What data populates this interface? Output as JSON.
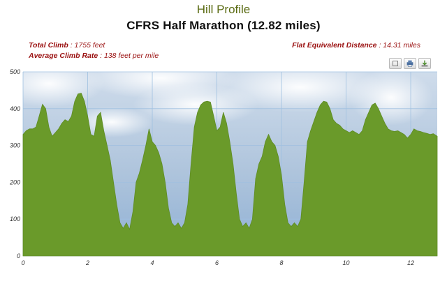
{
  "header": {
    "page_title": "Hill Profile",
    "chart_title": "CFRS Half Marathon  (12.82 miles)"
  },
  "stats": {
    "total_climb": {
      "label": "Total Climb",
      "value": "1755 feet"
    },
    "avg_climb_rate": {
      "label": "Average Climb Rate",
      "value": "138 feet per mile"
    },
    "flat_equiv": {
      "label": "Flat Equivalent Distance",
      "value": "14.31 miles"
    }
  },
  "toolbar": {
    "buttons": [
      {
        "icon": "fullscreen-icon"
      },
      {
        "icon": "print-icon"
      },
      {
        "icon": "download-icon"
      }
    ]
  },
  "colors": {
    "area_fill": "#6a9a2a",
    "sky_top": "#c9d8e8",
    "grid": "#9fc0e0"
  },
  "chart_data": {
    "type": "area",
    "title": "CFRS Half Marathon  (12.82 miles)",
    "xlabel": "",
    "ylabel": "",
    "xlim": [
      0,
      12.82
    ],
    "ylim": [
      0,
      500
    ],
    "x_ticks": [
      0,
      2,
      4,
      6,
      8,
      10,
      12
    ],
    "y_ticks": [
      0,
      100,
      200,
      300,
      400,
      500
    ],
    "grid": true,
    "series": [
      {
        "x": [
          0,
          0.1,
          0.2,
          0.3,
          0.4,
          0.5,
          0.6,
          0.7,
          0.8,
          0.9,
          1.0,
          1.1,
          1.2,
          1.3,
          1.4,
          1.5,
          1.6,
          1.7,
          1.8,
          1.9,
          2.0,
          2.1,
          2.2,
          2.3,
          2.4,
          2.5,
          2.6,
          2.7,
          2.8,
          2.9,
          3.0,
          3.1,
          3.2,
          3.3,
          3.4,
          3.5,
          3.6,
          3.7,
          3.8,
          3.9,
          4.0,
          4.1,
          4.2,
          4.3,
          4.4,
          4.5,
          4.6,
          4.7,
          4.8,
          4.9,
          5.0,
          5.1,
          5.2,
          5.3,
          5.4,
          5.5,
          5.6,
          5.7,
          5.8,
          5.9,
          6.0,
          6.1,
          6.2,
          6.3,
          6.4,
          6.5,
          6.6,
          6.7,
          6.8,
          6.9,
          7.0,
          7.1,
          7.2,
          7.3,
          7.4,
          7.5,
          7.6,
          7.7,
          7.8,
          7.9,
          8.0,
          8.1,
          8.2,
          8.3,
          8.4,
          8.5,
          8.6,
          8.7,
          8.8,
          8.9,
          9.0,
          9.1,
          9.2,
          9.3,
          9.4,
          9.5,
          9.6,
          9.7,
          9.8,
          9.9,
          10.0,
          10.1,
          10.2,
          10.3,
          10.4,
          10.5,
          10.6,
          10.7,
          10.8,
          10.9,
          11.0,
          11.1,
          11.2,
          11.3,
          11.4,
          11.5,
          11.6,
          11.7,
          11.8,
          11.9,
          12.0,
          12.1,
          12.2,
          12.3,
          12.4,
          12.5,
          12.6,
          12.7,
          12.82
        ],
        "y": [
          330,
          340,
          345,
          345,
          350,
          380,
          412,
          400,
          350,
          325,
          335,
          345,
          360,
          370,
          365,
          380,
          420,
          440,
          442,
          420,
          380,
          330,
          325,
          380,
          390,
          340,
          300,
          260,
          200,
          140,
          90,
          75,
          90,
          72,
          120,
          200,
          225,
          260,
          300,
          345,
          310,
          300,
          280,
          250,
          200,
          130,
          90,
          80,
          90,
          75,
          90,
          140,
          250,
          350,
          390,
          410,
          418,
          420,
          418,
          380,
          340,
          350,
          390,
          360,
          310,
          250,
          170,
          100,
          80,
          90,
          75,
          100,
          210,
          250,
          270,
          310,
          330,
          310,
          300,
          270,
          220,
          140,
          90,
          80,
          90,
          80,
          100,
          200,
          310,
          340,
          365,
          390,
          410,
          420,
          418,
          400,
          370,
          360,
          355,
          345,
          340,
          335,
          340,
          335,
          330,
          340,
          370,
          390,
          410,
          415,
          400,
          380,
          360,
          345,
          340,
          338,
          340,
          335,
          330,
          320,
          330,
          345,
          340,
          338,
          335,
          333,
          330,
          332,
          325
        ]
      }
    ]
  }
}
